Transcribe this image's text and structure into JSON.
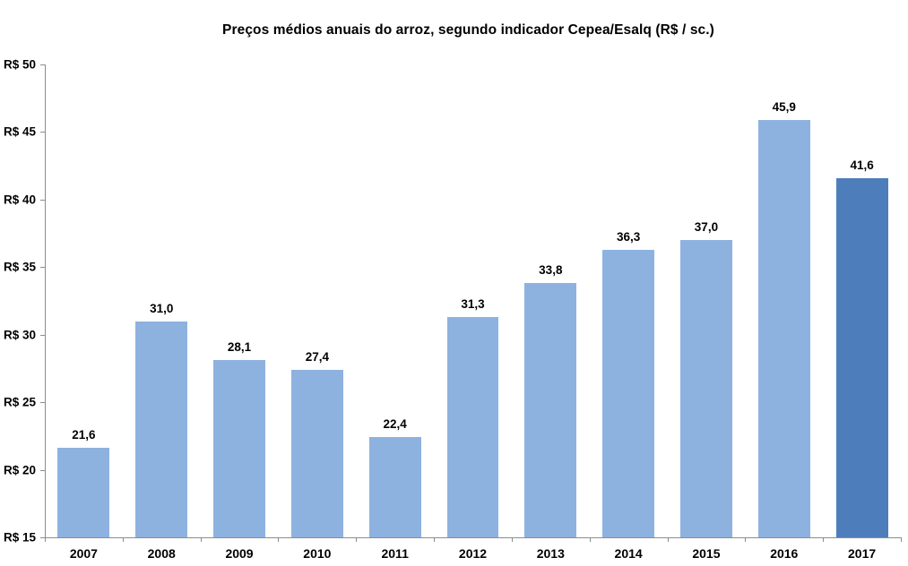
{
  "chart_data": {
    "type": "bar",
    "title": "Preços médios anuais do arroz, segundo indicador Cepea/Esalq (R$ / sc.)",
    "categories": [
      "2007",
      "2008",
      "2009",
      "2010",
      "2011",
      "2012",
      "2013",
      "2014",
      "2015",
      "2016",
      "2017"
    ],
    "values": [
      21.6,
      31.0,
      28.1,
      27.4,
      22.4,
      31.3,
      33.8,
      36.3,
      37.0,
      45.9,
      41.6
    ],
    "value_labels": [
      "21,6",
      "31,0",
      "28,1",
      "27,4",
      "22,4",
      "31,3",
      "33,8",
      "36,3",
      "37,0",
      "45,9",
      "41,6"
    ],
    "xlabel": "",
    "ylabel": "",
    "ylim": [
      15,
      50
    ],
    "ytick_step": 5,
    "ytick_labels": [
      "R$ 15",
      "R$ 20",
      "R$ 25",
      "R$ 30",
      "R$ 35",
      "R$ 40",
      "R$ 45",
      "R$ 50"
    ],
    "grid": false,
    "legend_position": "none",
    "bar_color": "#8EB2E0",
    "highlight_color": "#4D7EBB",
    "highlight_index": 10,
    "axis_color": "#8C8C8C",
    "label_color": "#000000",
    "background_color": "#FFFFFF"
  }
}
